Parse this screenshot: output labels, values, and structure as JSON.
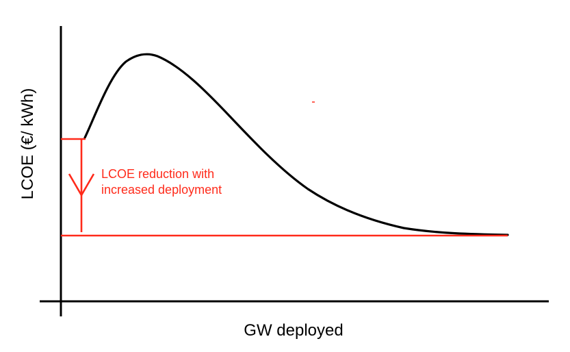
{
  "diagram": {
    "xlabel": "GW deployed",
    "ylabel": "LCOE (€/ kWh)",
    "annotation": {
      "line1": "LCOE reduction with",
      "line2": "increased deployment"
    },
    "colors": {
      "axis": "#000000",
      "curve": "#000000",
      "highlight": "#ff2a1a"
    }
  }
}
